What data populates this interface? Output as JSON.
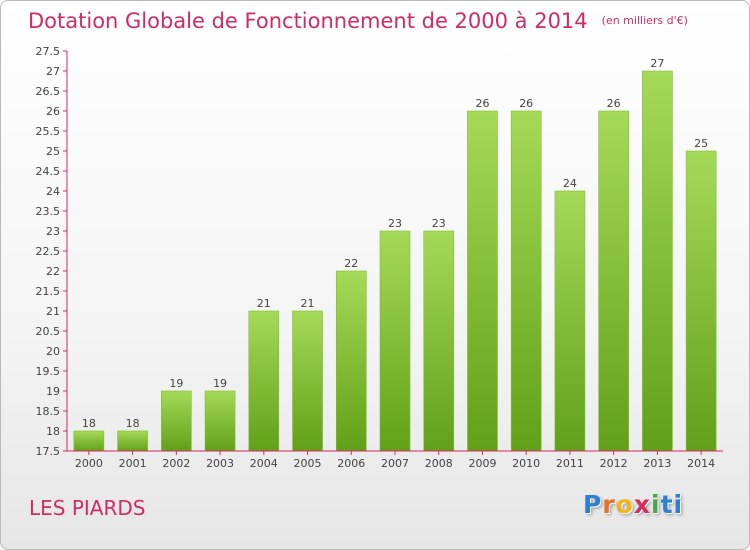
{
  "chart_data": {
    "type": "bar",
    "title": "Dotation Globale de Fonctionnement de 2000 à 2014",
    "subtitle": "(en milliers d'€)",
    "categories": [
      "2000",
      "2001",
      "2002",
      "2003",
      "2004",
      "2005",
      "2006",
      "2007",
      "2008",
      "2009",
      "2010",
      "2011",
      "2012",
      "2013",
      "2014"
    ],
    "values": [
      18,
      18,
      19,
      19,
      21,
      21,
      22,
      23,
      23,
      26,
      26,
      24,
      26,
      27,
      25
    ],
    "data_labels": [
      "18",
      "18",
      "19",
      "19",
      "21",
      "21",
      "22",
      "23",
      "23",
      "26",
      "26",
      "24",
      "26",
      "27",
      "25"
    ],
    "ylim": [
      17.5,
      27.5
    ],
    "yticks": [
      17.5,
      18,
      18.5,
      19,
      19.5,
      20,
      20.5,
      21,
      21.5,
      22,
      22.5,
      23,
      23.5,
      24,
      24.5,
      25,
      25.5,
      26,
      26.5,
      27,
      27.5
    ],
    "ytick_labels": [
      "17.5",
      "18",
      "18.5",
      "19",
      "19.5",
      "20",
      "20.5",
      "21",
      "21.5",
      "22",
      "22.5",
      "23",
      "23.5",
      "24",
      "24.5",
      "25",
      "25.5",
      "26",
      "26.5",
      "27",
      "27.5"
    ],
    "xlabel": "",
    "ylabel": "",
    "grid": false,
    "colors": {
      "bar_top": "#a5da58",
      "bar_bottom": "#62a019",
      "axis": "#d12c5f"
    }
  },
  "footer": {
    "town": "LES PIARDS",
    "logo_letters": [
      "P",
      "r",
      "o",
      "x",
      "i",
      "ti"
    ]
  }
}
